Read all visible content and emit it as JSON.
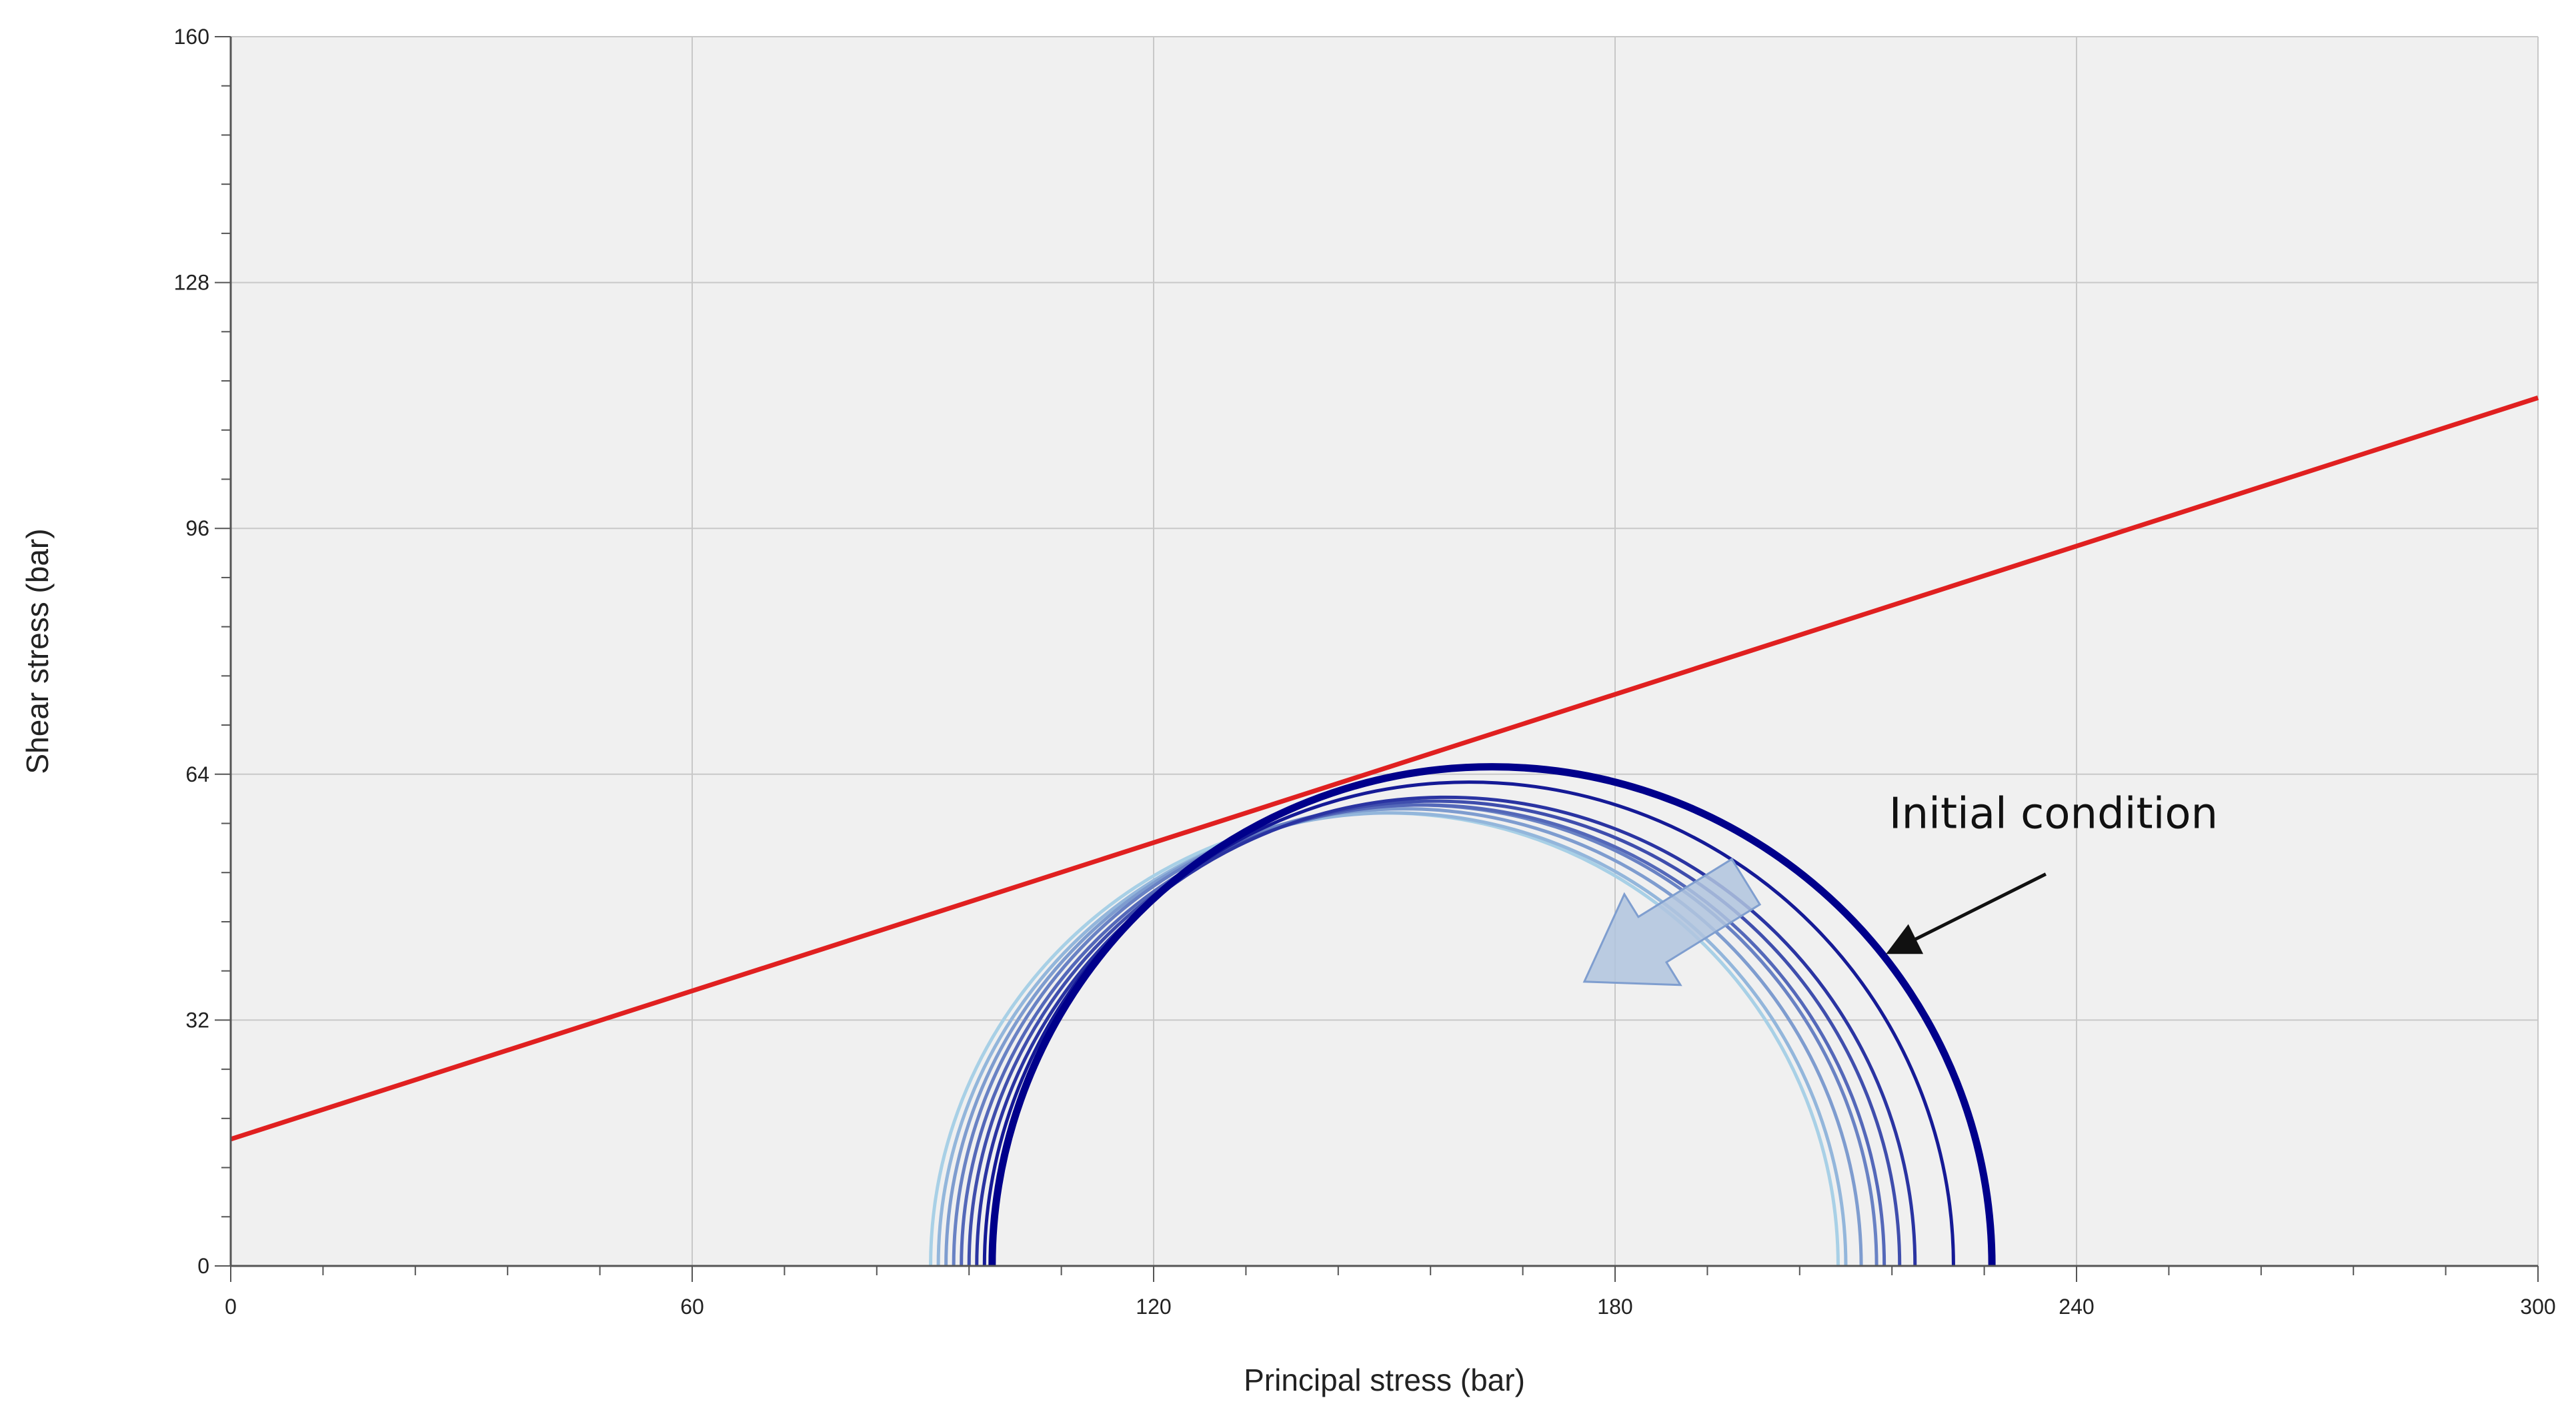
{
  "chart_data": {
    "type": "line",
    "title": "",
    "xlabel": "Principal stress (bar)",
    "ylabel": "Shear stress (bar)",
    "xlim": [
      0,
      300
    ],
    "ylim": [
      0,
      160
    ],
    "xticks": [
      0,
      60,
      120,
      180,
      240,
      300
    ],
    "yticks": [
      0,
      32,
      64,
      96,
      128,
      160
    ],
    "x_minor_step": 12,
    "y_minor_step": 6.4,
    "grid": true,
    "colors": {
      "plot_background": "#f0f0f0",
      "grid": "#c8c8c8",
      "axis": "#555555",
      "failure_line": "#e02020",
      "circle_initial": "#00008b",
      "circle_final": "#a8d0e6",
      "arrow_fill": "#b0c4de",
      "arrow_stroke": "#7f9ecf"
    },
    "failure_envelope": {
      "x": [
        0,
        300
      ],
      "y": [
        16.5,
        113
      ]
    },
    "mohr_circles": [
      {
        "sigma3": 99,
        "sigma1": 229,
        "stage": 0
      },
      {
        "sigma3": 98,
        "sigma1": 224,
        "stage": 1
      },
      {
        "sigma3": 97,
        "sigma1": 219,
        "stage": 2
      },
      {
        "sigma3": 96,
        "sigma1": 217,
        "stage": 3
      },
      {
        "sigma3": 95,
        "sigma1": 215,
        "stage": 4
      },
      {
        "sigma3": 94,
        "sigma1": 214,
        "stage": 5
      },
      {
        "sigma3": 93,
        "sigma1": 212,
        "stage": 6
      },
      {
        "sigma3": 92,
        "sigma1": 210,
        "stage": 7
      },
      {
        "sigma3": 91,
        "sigma1": 209,
        "stage": 8
      }
    ],
    "annotations": [
      {
        "text": "Initial condition",
        "x": 237,
        "y": 57
      },
      {
        "text": "",
        "type": "arrow",
        "from": [
          236,
          51
        ],
        "to": [
          216,
          41
        ]
      },
      {
        "text": "",
        "type": "block-arrow",
        "from": [
          197,
          50
        ],
        "to": [
          176,
          37
        ]
      }
    ]
  }
}
